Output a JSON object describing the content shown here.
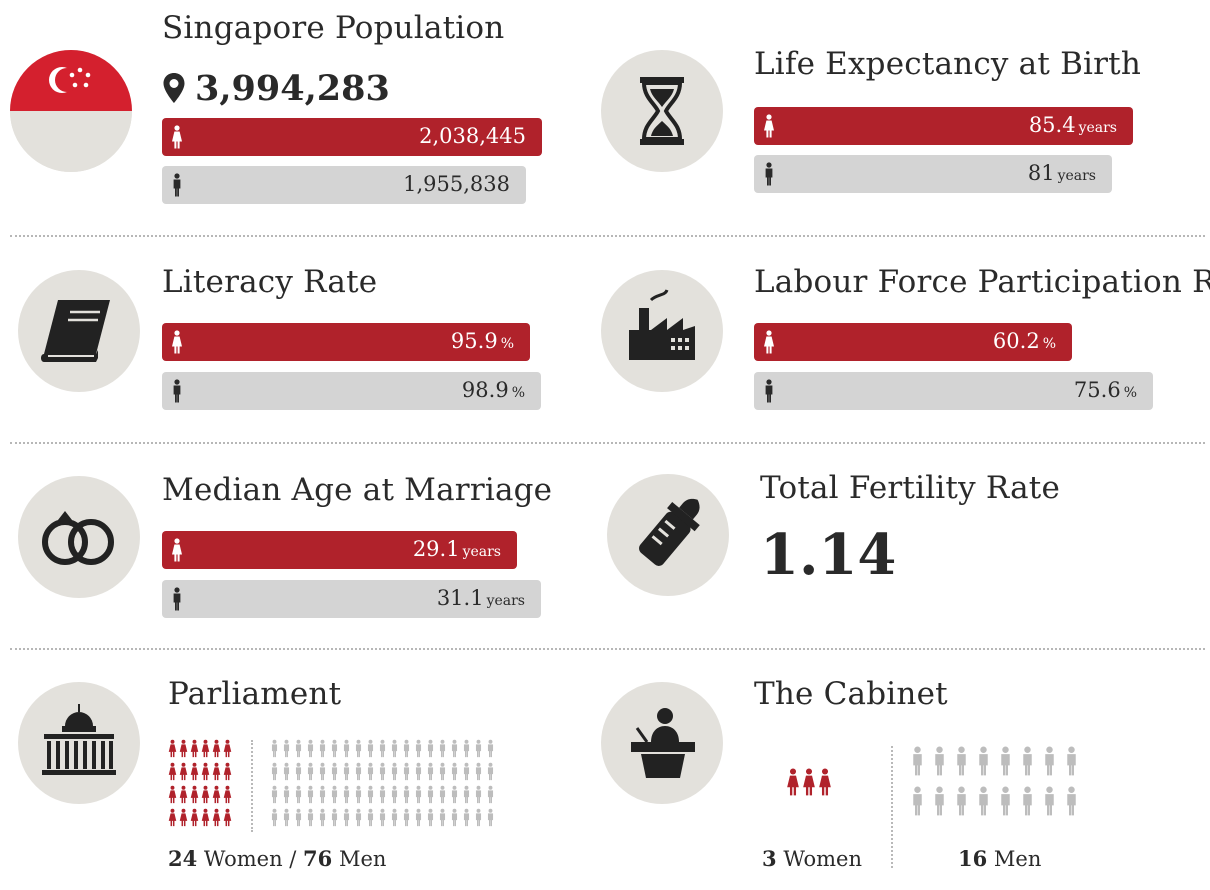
{
  "colors": {
    "female": "#b0222b",
    "male": "#d4d4d4",
    "icon_bg": "#e3e1dc",
    "text": "#2a2a2a"
  },
  "population": {
    "title": "Singapore Population",
    "total": "3,994,283",
    "female": "2,038,445",
    "male": "1,955,838",
    "icon": "singapore-flag-icon",
    "marker_icon": "location-pin-icon"
  },
  "life_expectancy": {
    "title": "Life Expectancy at Birth",
    "female": "85.4",
    "male": "81",
    "unit": "years",
    "icon": "hourglass-icon"
  },
  "literacy": {
    "title": "Literacy Rate",
    "female": "95.9",
    "male": "98.9",
    "unit": "%",
    "icon": "book-icon"
  },
  "labour": {
    "title": "Labour Force Participation Rate",
    "female": "60.2",
    "male": "75.6",
    "unit": "%",
    "icon": "factory-icon"
  },
  "marriage": {
    "title": "Median Age at Marriage",
    "female": "29.1",
    "male": "31.1",
    "unit": "years",
    "icon": "wedding-rings-icon"
  },
  "fertility": {
    "title": "Total Fertility Rate",
    "value": "1.14",
    "icon": "baby-bottle-icon"
  },
  "parliament": {
    "title": "Parliament",
    "women": "24",
    "women_label": "Women",
    "separator": "/",
    "men": "76",
    "men_label": "Men",
    "icon": "parliament-building-icon"
  },
  "cabinet": {
    "title": "The Cabinet",
    "women": "3",
    "women_label": "Women",
    "men": "16",
    "men_label": "Men",
    "icon": "speaker-podium-icon"
  },
  "chart_data": [
    {
      "type": "bar",
      "title": "Singapore Population",
      "categories": [
        "Women",
        "Men"
      ],
      "values": [
        2038445,
        1955838
      ]
    },
    {
      "type": "bar",
      "title": "Life Expectancy at Birth",
      "categories": [
        "Women",
        "Men"
      ],
      "values": [
        85.4,
        81
      ]
    },
    {
      "type": "bar",
      "title": "Literacy Rate",
      "categories": [
        "Women",
        "Men"
      ],
      "values": [
        95.9,
        98.9
      ]
    },
    {
      "type": "bar",
      "title": "Labour Force Participation Rate",
      "categories": [
        "Women",
        "Men"
      ],
      "values": [
        60.2,
        75.6
      ]
    },
    {
      "type": "bar",
      "title": "Median Age at Marriage",
      "categories": [
        "Women",
        "Men"
      ],
      "values": [
        29.1,
        31.1
      ]
    },
    {
      "type": "table",
      "title": "Parliament",
      "categories": [
        "Women",
        "Men"
      ],
      "values": [
        24,
        76
      ]
    },
    {
      "type": "table",
      "title": "The Cabinet",
      "categories": [
        "Women",
        "Men"
      ],
      "values": [
        3,
        16
      ]
    }
  ]
}
